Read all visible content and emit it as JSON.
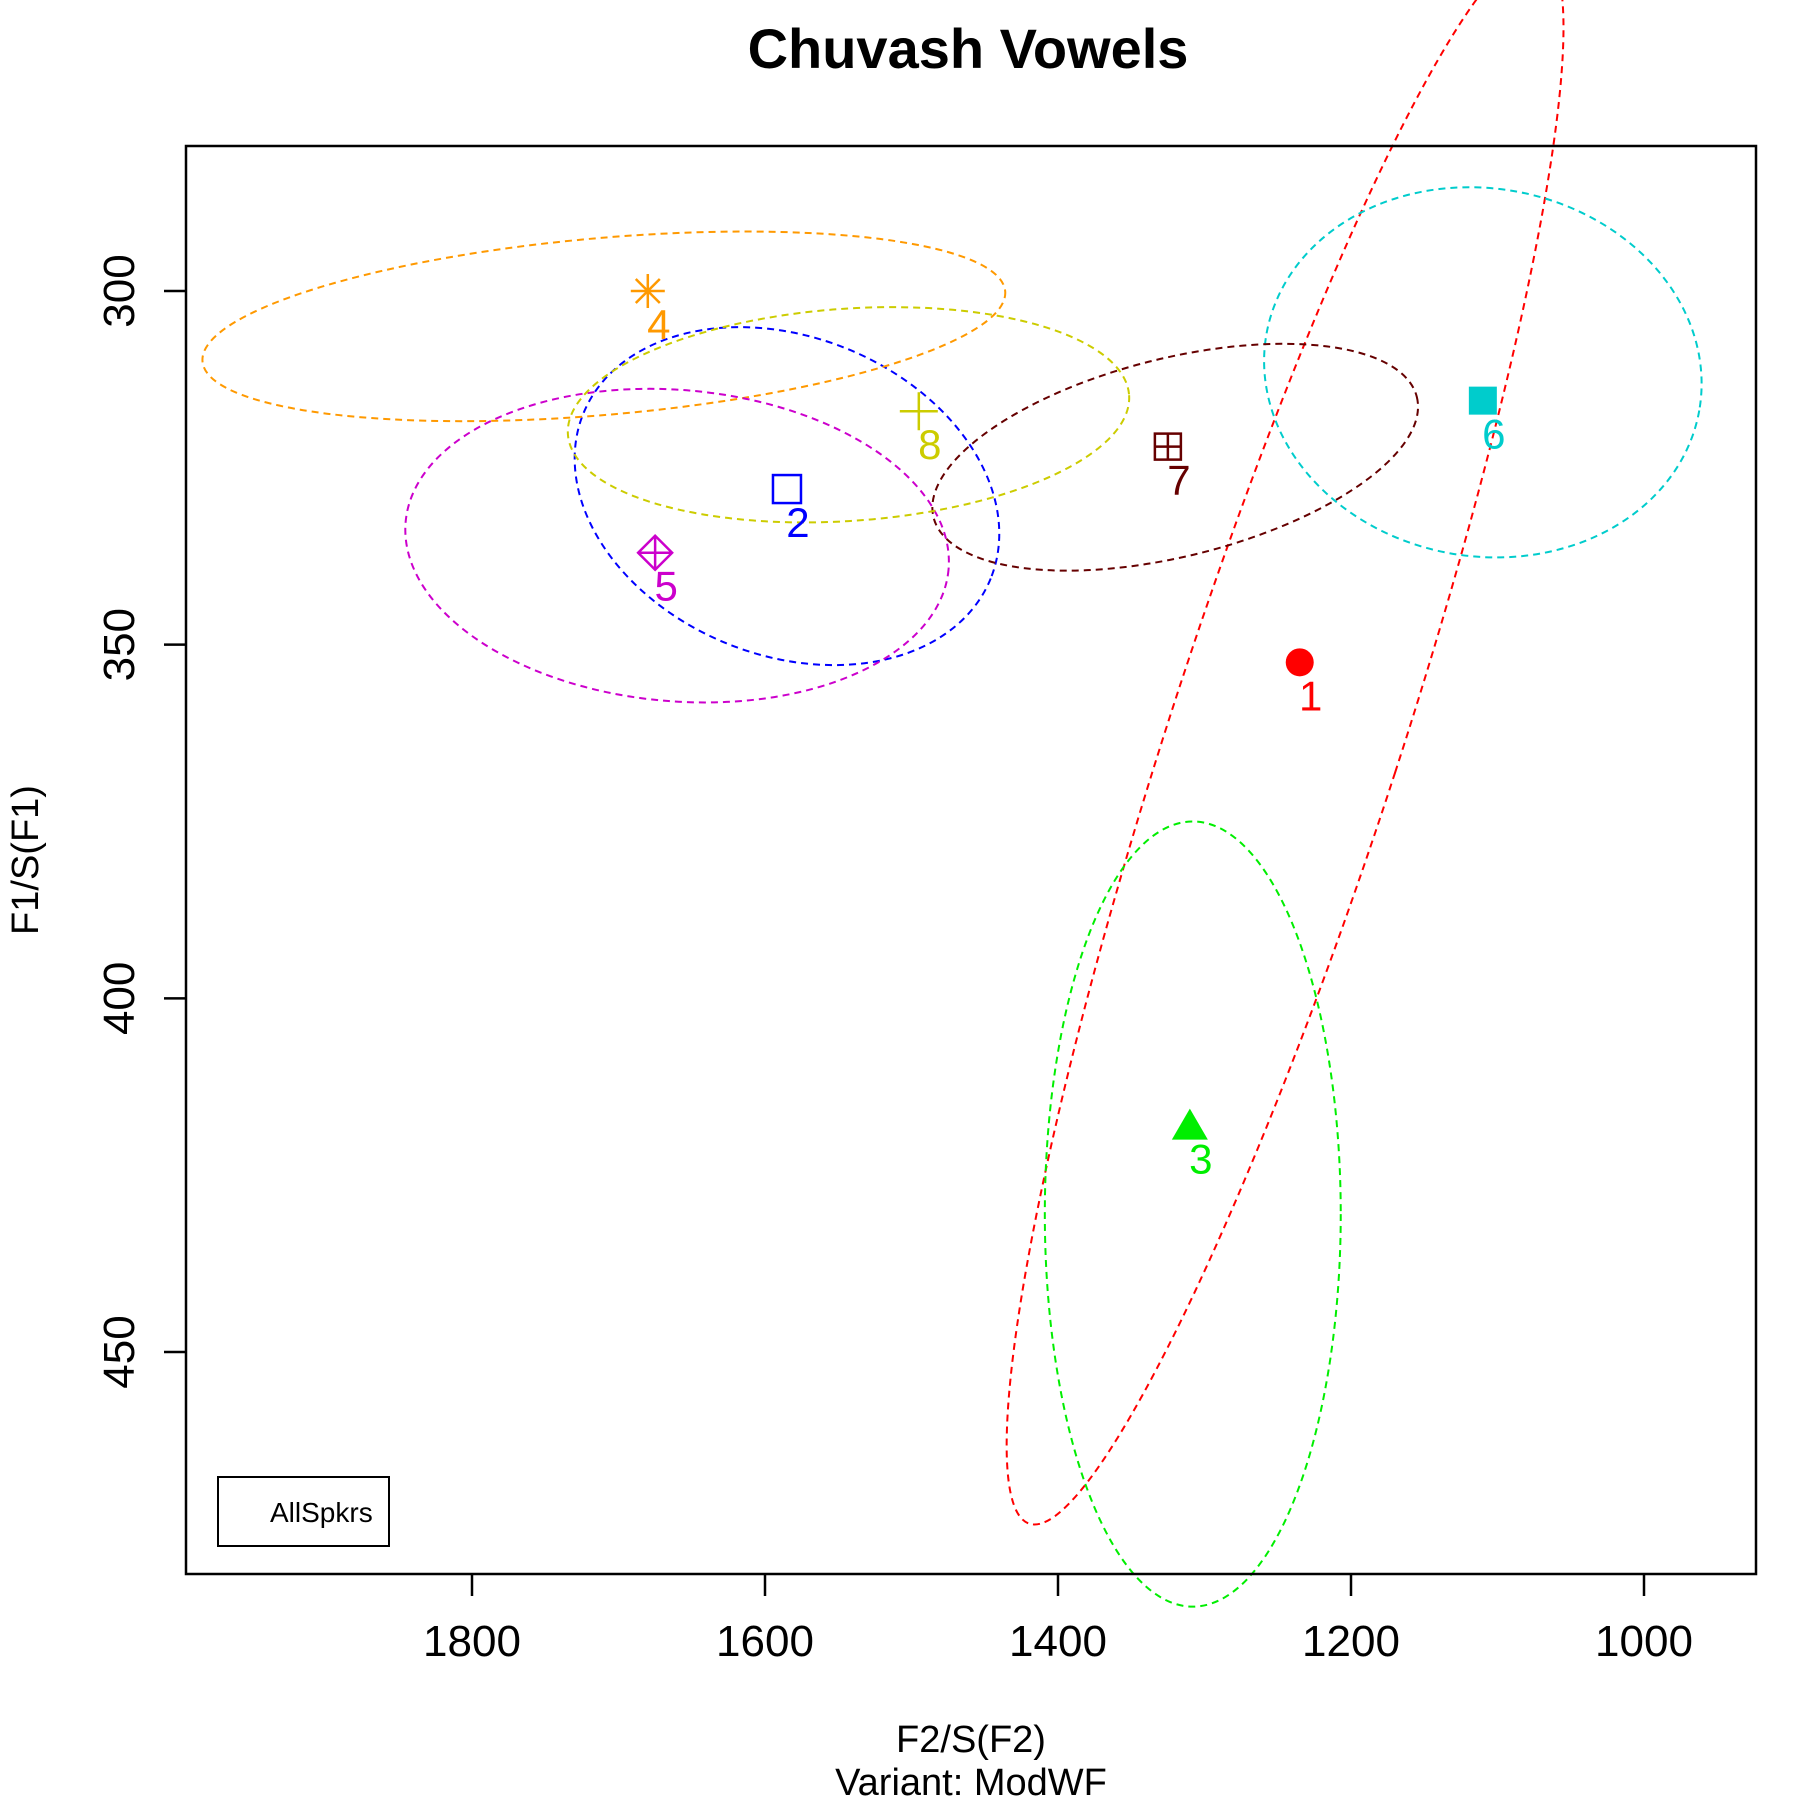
{
  "chart_data": {
    "type": "scatter",
    "title": "Chuvash Vowels",
    "xlabel": "F2/S(F2)",
    "ylabel": "F1/S(F1)",
    "subtitle": "Variant: ModWF",
    "x_reversed": true,
    "y_reversed": true,
    "xlim": [
      1995,
      925
    ],
    "ylim": [
      279,
      481
    ],
    "x_ticks": [
      1800,
      1600,
      1400,
      1200,
      1000
    ],
    "y_ticks": [
      300,
      350,
      400,
      450
    ],
    "legend": {
      "position": "bottom-left",
      "entries": [
        "AllSpkrs"
      ]
    },
    "series": [
      {
        "label": "1",
        "x": 1235,
        "y": 352.5,
        "marker": "filled-circle",
        "color": "#ff0000",
        "ellipse": {
          "cx": 1245,
          "cy": 363,
          "rx": 79,
          "ry": 117,
          "angle": 18
        }
      },
      {
        "label": "2",
        "x": 1585,
        "y": 328,
        "marker": "open-square",
        "color": "#0000ff",
        "ellipse": {
          "cx": 1585,
          "cy": 329,
          "rx": 150,
          "ry": 22.5,
          "angle": 22
        }
      },
      {
        "label": "3",
        "x": 1310,
        "y": 418,
        "marker": "filled-triangle",
        "color": "#00ee00",
        "ellipse": {
          "cx": 1308,
          "cy": 430.5,
          "rx": 101,
          "ry": 55.5,
          "angle": 0
        }
      },
      {
        "label": "4",
        "x": 1680,
        "y": 300,
        "marker": "asterisk",
        "color": "#ff9900",
        "ellipse": {
          "cx": 1710,
          "cy": 305,
          "rx": 275,
          "ry": 12.5,
          "angle": -5
        }
      },
      {
        "label": "5",
        "x": 1675,
        "y": 337,
        "marker": "diamond-plus",
        "color": "#cc00cc",
        "ellipse": {
          "cx": 1660,
          "cy": 336,
          "rx": 186,
          "ry": 22,
          "angle": 5
        }
      },
      {
        "label": "6",
        "x": 1110,
        "y": 315.5,
        "marker": "filled-square",
        "color": "#00cccc",
        "ellipse": {
          "cx": 1110,
          "cy": 311.5,
          "rx": 150,
          "ry": 26,
          "angle": 10
        }
      },
      {
        "label": "7",
        "x": 1325,
        "y": 322,
        "marker": "square-plus",
        "color": "#660000",
        "ellipse": {
          "cx": 1320,
          "cy": 323.5,
          "rx": 170,
          "ry": 14,
          "angle": -14
        }
      },
      {
        "label": "8",
        "x": 1495,
        "y": 317,
        "marker": "plus",
        "color": "#cccc00",
        "ellipse": {
          "cx": 1543,
          "cy": 317.5,
          "rx": 192,
          "ry": 15,
          "angle": -4
        }
      }
    ]
  }
}
